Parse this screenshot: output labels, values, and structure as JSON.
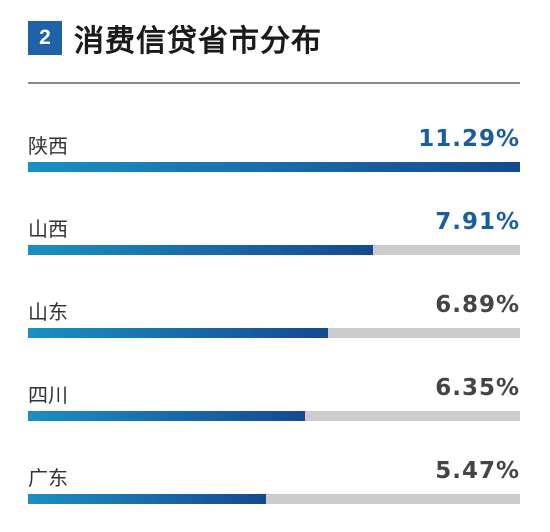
{
  "header": {
    "badge_number": "2",
    "title": "消费信贷省市分布"
  },
  "colors": {
    "badge": "#1f62a8",
    "highlight_value": "#1a5da3",
    "normal_value": "#444444",
    "bar_start": "#1b8fc4",
    "bar_end": "#16498f",
    "track": "#cccccc"
  },
  "chart_data": {
    "type": "bar",
    "orientation": "horizontal",
    "max_value": 11.29,
    "rows": [
      {
        "label": "陕西",
        "value": 11.29,
        "display": "11.29%",
        "highlight": true
      },
      {
        "label": "山西",
        "value": 7.91,
        "display": "7.91%",
        "highlight": true
      },
      {
        "label": "山东",
        "value": 6.89,
        "display": "6.89%",
        "highlight": false
      },
      {
        "label": "四川",
        "value": 6.35,
        "display": "6.35%",
        "highlight": false
      },
      {
        "label": "广东",
        "value": 5.47,
        "display": "5.47%",
        "highlight": false
      }
    ]
  }
}
